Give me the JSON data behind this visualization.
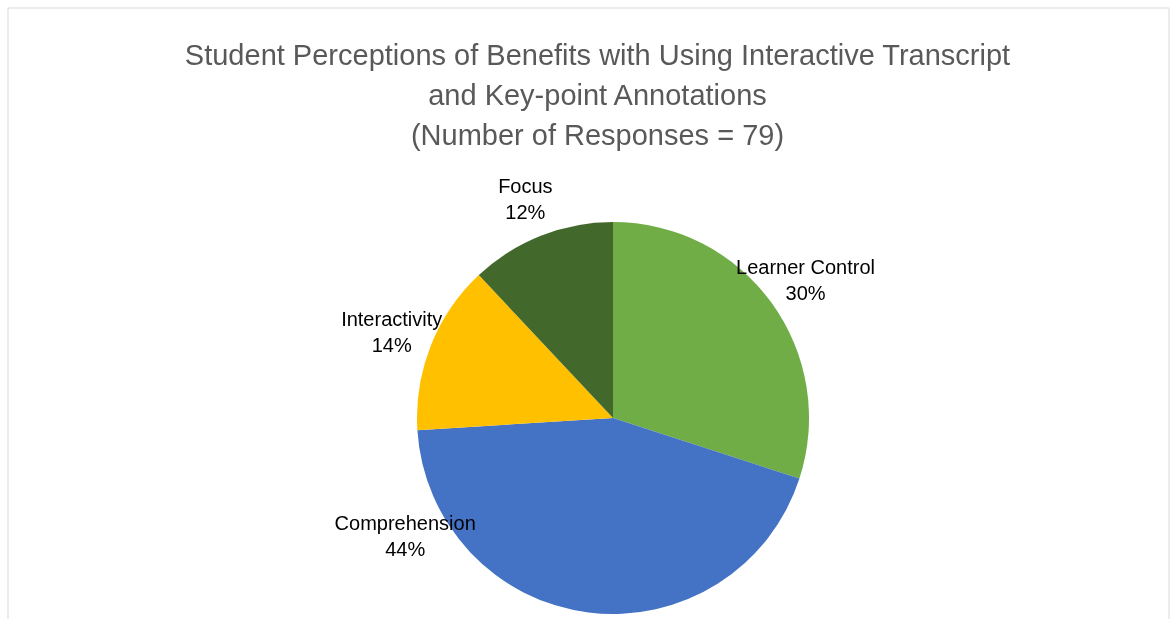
{
  "chart_data": {
    "type": "pie",
    "title": "Student Perceptions of Benefits with Using Interactive Transcript and Key-point Annotations",
    "subtitle": "(Number of Responses = 79)",
    "categories": [
      "Learner Control",
      "Comprehension",
      "Interactivity",
      "Focus"
    ],
    "values": [
      30,
      44,
      14,
      12
    ],
    "colors": [
      "#70ad47",
      "#4472c4",
      "#ffc000",
      "#43682b"
    ],
    "value_labels": [
      "30%",
      "44%",
      "14%",
      "12%"
    ]
  }
}
